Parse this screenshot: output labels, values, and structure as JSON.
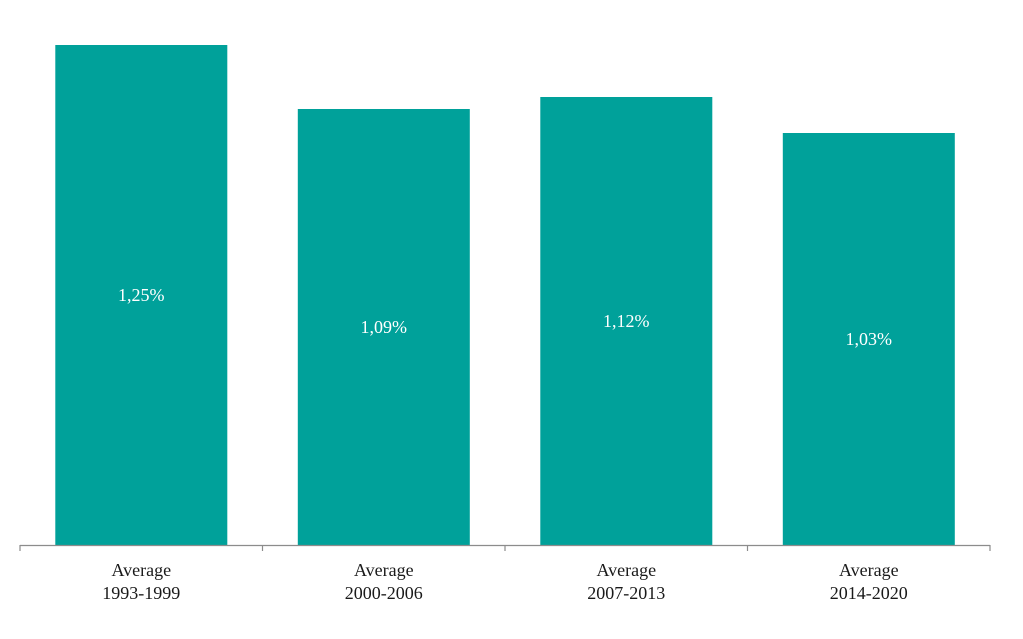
{
  "chart_data": {
    "type": "bar",
    "categories": [
      [
        "Average",
        "1993-1999"
      ],
      [
        "Average",
        "2000-2006"
      ],
      [
        "Average",
        "2007-2013"
      ],
      [
        "Average",
        "2014-2020"
      ]
    ],
    "values": [
      1.25,
      1.09,
      1.12,
      1.03
    ],
    "data_labels": [
      "1,25%",
      "1,09%",
      "1,12%",
      "1,03%"
    ],
    "title": "",
    "xlabel": "",
    "ylabel": "",
    "ylim": [
      0,
      1.28
    ],
    "grid": false,
    "legend": "none",
    "colors": {
      "bar": "#00A19A",
      "axis": "#8c8c8c",
      "label_text": "#1a1a1a",
      "value_text": "#ffffff"
    }
  }
}
